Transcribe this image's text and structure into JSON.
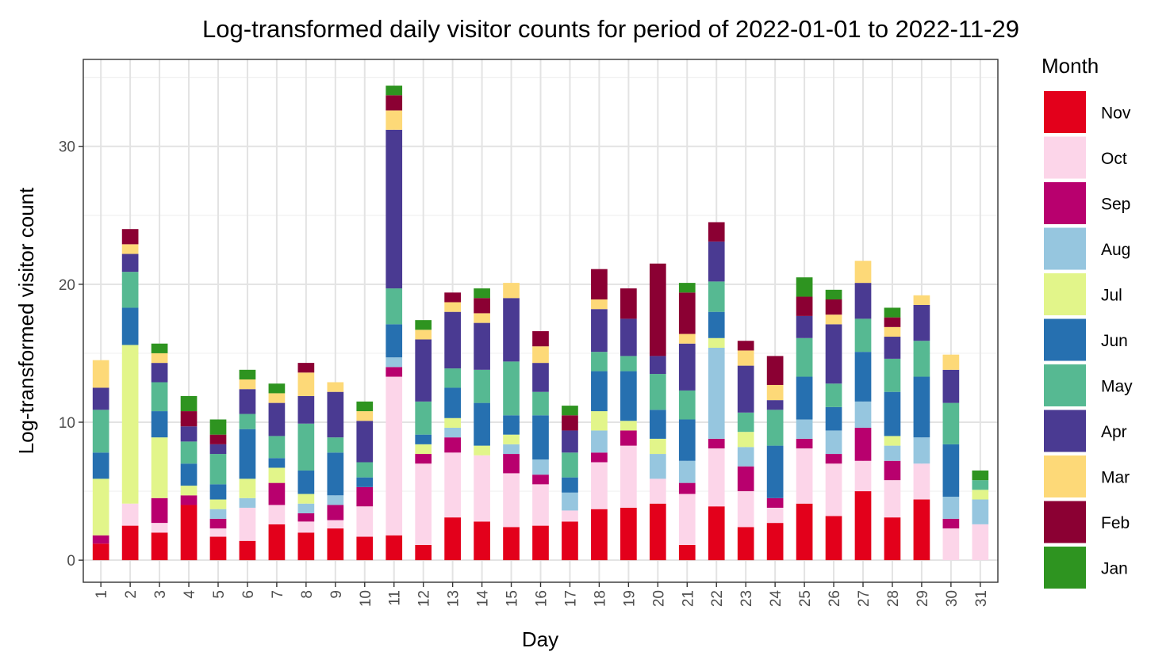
{
  "chart_data": {
    "type": "bar",
    "stacked": true,
    "title": "Log-transformed daily visitor counts for period of 2022-01-01 to 2022-11-29",
    "xlabel": "Day",
    "ylabel": "Log-transformed visitor count",
    "ylim": [
      -1.6,
      36.3
    ],
    "yticks": [
      0,
      10,
      20,
      30
    ],
    "grid": true,
    "legend_title": "Month",
    "legend_position": "right",
    "categories": [
      "1",
      "2",
      "3",
      "4",
      "5",
      "6",
      "7",
      "8",
      "9",
      "10",
      "11",
      "12",
      "13",
      "14",
      "15",
      "16",
      "17",
      "18",
      "19",
      "20",
      "21",
      "22",
      "23",
      "24",
      "25",
      "26",
      "27",
      "28",
      "29",
      "30",
      "31"
    ],
    "series": [
      {
        "name": "Nov",
        "color": "#e3001b",
        "values": [
          1.2,
          2.5,
          2.0,
          4.0,
          1.7,
          1.4,
          2.6,
          2.0,
          2.3,
          1.7,
          1.8,
          1.1,
          3.1,
          2.8,
          2.4,
          2.5,
          2.8,
          3.7,
          3.8,
          4.1,
          1.1,
          3.9,
          2.4,
          2.7,
          4.1,
          3.2,
          5.0,
          3.1,
          4.4,
          0,
          0
        ]
      },
      {
        "name": "Oct",
        "color": "#fcd5e9",
        "values": [
          0,
          1.6,
          0.7,
          0,
          0.6,
          2.4,
          1.4,
          0.8,
          0.6,
          2.2,
          11.5,
          5.9,
          4.7,
          4.8,
          3.9,
          3.0,
          0.8,
          3.4,
          4.5,
          1.8,
          3.7,
          4.2,
          2.6,
          1.1,
          4.0,
          3.8,
          2.2,
          2.7,
          2.6,
          2.3,
          2.6
        ]
      },
      {
        "name": "Sep",
        "color": "#b8006e",
        "values": [
          0.6,
          0,
          1.8,
          0.7,
          0.7,
          0,
          1.6,
          0.6,
          1.1,
          1.4,
          0.7,
          0.7,
          1.1,
          0,
          1.4,
          0.7,
          0,
          0.7,
          1.1,
          0,
          0.8,
          0.7,
          1.8,
          0.7,
          0.7,
          0.7,
          2.4,
          1.4,
          0,
          0.7,
          0
        ]
      },
      {
        "name": "Aug",
        "color": "#96c6df",
        "values": [
          0,
          0,
          0,
          0,
          0.7,
          0.7,
          0,
          0.7,
          0.7,
          0,
          0.7,
          0,
          0.7,
          0,
          0.7,
          1.1,
          1.3,
          1.6,
          0,
          1.8,
          1.6,
          6.6,
          1.4,
          0,
          1.4,
          1.7,
          1.9,
          1.1,
          1.9,
          1.6,
          1.8
        ]
      },
      {
        "name": "Jul",
        "color": "#e2f58a",
        "values": [
          4.1,
          11.5,
          4.4,
          0.7,
          0.7,
          1.4,
          1.1,
          0.7,
          0,
          0,
          0,
          0.7,
          0.7,
          0.7,
          0.7,
          0,
          0,
          1.4,
          0.7,
          1.1,
          0,
          0.7,
          1.1,
          0,
          0,
          0,
          0,
          0.7,
          0,
          0,
          0.7
        ]
      },
      {
        "name": "Jun",
        "color": "#2670b0",
        "values": [
          1.9,
          2.7,
          1.9,
          1.6,
          1.1,
          3.6,
          0.7,
          1.7,
          3.1,
          0.7,
          2.4,
          0.7,
          2.2,
          3.1,
          1.4,
          3.2,
          1.1,
          2.9,
          3.6,
          2.1,
          3.0,
          1.9,
          0,
          3.8,
          3.1,
          1.7,
          3.6,
          3.2,
          4.4,
          3.8,
          0
        ]
      },
      {
        "name": "May",
        "color": "#56b992",
        "values": [
          3.1,
          2.6,
          2.1,
          1.6,
          2.2,
          1.1,
          1.6,
          3.4,
          1.1,
          1.1,
          2.6,
          2.4,
          1.4,
          2.4,
          3.9,
          1.7,
          1.8,
          1.4,
          1.1,
          2.6,
          2.1,
          2.2,
          1.4,
          2.6,
          2.8,
          1.7,
          2.4,
          2.4,
          2.6,
          3.0,
          0.7
        ]
      },
      {
        "name": "Apr",
        "color": "#4a3a92",
        "values": [
          1.6,
          1.3,
          1.4,
          1.1,
          0.7,
          1.8,
          2.4,
          2.0,
          3.3,
          3.0,
          11.5,
          4.5,
          4.1,
          3.4,
          4.6,
          2.1,
          1.6,
          3.1,
          2.7,
          1.3,
          3.4,
          2.9,
          3.4,
          0.7,
          1.6,
          4.3,
          2.6,
          1.6,
          2.6,
          2.4,
          0
        ]
      },
      {
        "name": "Mar",
        "color": "#fdd978",
        "values": [
          2.0,
          0.7,
          0.7,
          0,
          0,
          0.7,
          0.7,
          1.7,
          0.7,
          0.7,
          1.4,
          0.7,
          0.7,
          0.7,
          1.1,
          1.2,
          0,
          0.7,
          0,
          0,
          0.7,
          0,
          1.1,
          1.1,
          0,
          0.7,
          1.6,
          0.7,
          0.7,
          1.1,
          0
        ]
      },
      {
        "name": "Feb",
        "color": "#8b0033",
        "values": [
          0,
          1.1,
          0,
          1.1,
          0.7,
          0,
          0,
          0.7,
          0,
          0,
          1.1,
          0,
          0.7,
          1.1,
          0,
          1.1,
          1.1,
          2.2,
          2.2,
          6.7,
          3.0,
          1.4,
          0.7,
          2.1,
          1.4,
          1.1,
          0,
          0.7,
          0,
          0,
          0
        ]
      },
      {
        "name": "Jan",
        "color": "#2e9420",
        "values": [
          0,
          0,
          0.7,
          1.1,
          1.1,
          0.7,
          0.7,
          0,
          0,
          0.7,
          0.7,
          0.7,
          0,
          0.7,
          0,
          0,
          0.7,
          0,
          0,
          0,
          0.7,
          0,
          0,
          0,
          1.4,
          0.7,
          0,
          0.7,
          0,
          0,
          0.7
        ]
      }
    ]
  }
}
